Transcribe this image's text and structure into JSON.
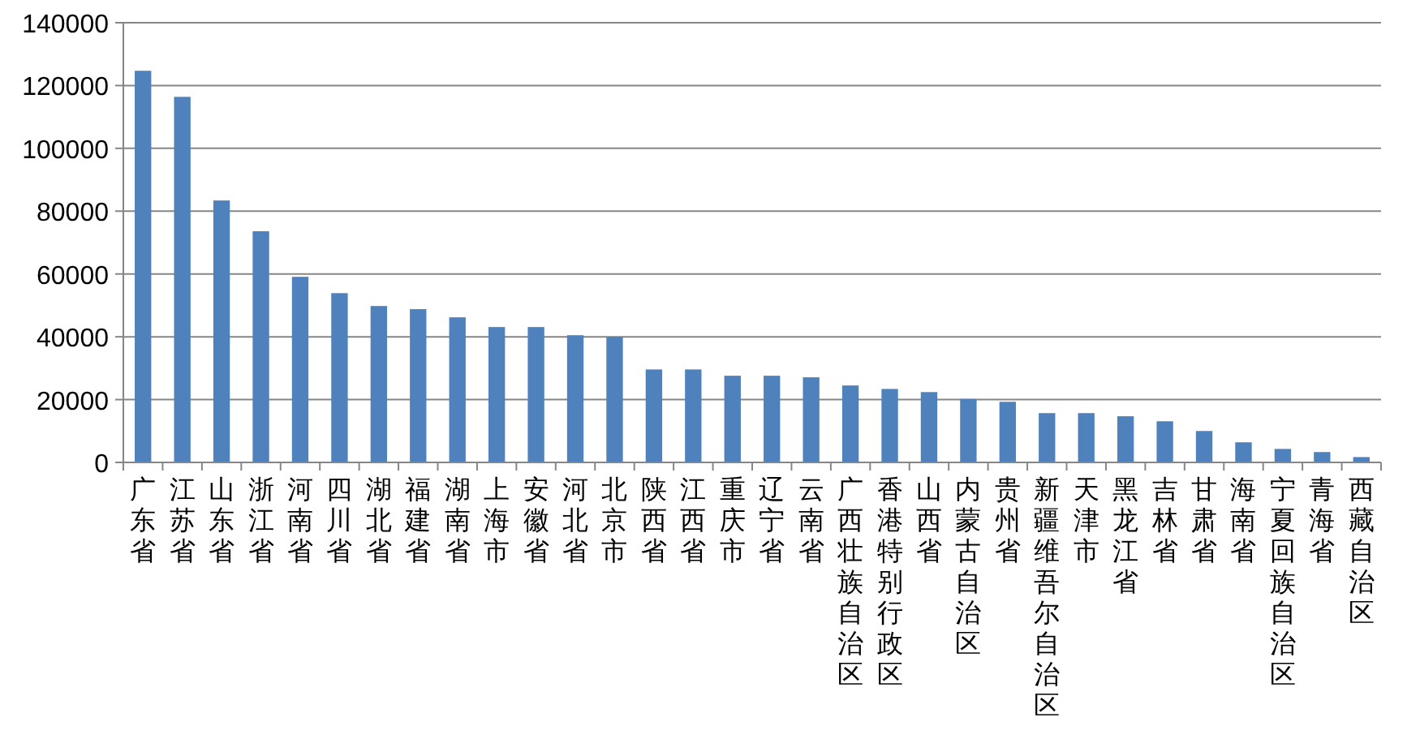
{
  "chart_data": {
    "type": "bar",
    "categories": [
      "广东省",
      "江苏省",
      "山东省",
      "浙江省",
      "河南省",
      "四川省",
      "湖北省",
      "福建省",
      "湖南省",
      "上海市",
      "安徽省",
      "河北省",
      "北京市",
      "陕西省",
      "江西省",
      "重庆市",
      "辽宁省",
      "云南省",
      "广西壮族自治区",
      "香港特别行政区",
      "山西省",
      "内蒙古自治区",
      "贵州省",
      "新疆维吾尔自治区",
      "天津市",
      "黑龙江省",
      "吉林省",
      "甘肃省",
      "海南省",
      "宁夏回族自治区",
      "青海省",
      "西藏自治区"
    ],
    "values": [
      124700,
      116400,
      83400,
      73600,
      59100,
      53900,
      49800,
      48800,
      46200,
      43100,
      43100,
      40500,
      40000,
      29600,
      29600,
      27600,
      27600,
      27100,
      24500,
      23400,
      22400,
      20200,
      19300,
      15700,
      15700,
      14700,
      13100,
      10000,
      6400,
      4300,
      3300,
      1700
    ],
    "color": "#4f81bd",
    "ylim": [
      0,
      140000
    ],
    "yticks": [
      0,
      20000,
      40000,
      60000,
      80000,
      100000,
      120000,
      140000
    ],
    "grid": "y"
  }
}
